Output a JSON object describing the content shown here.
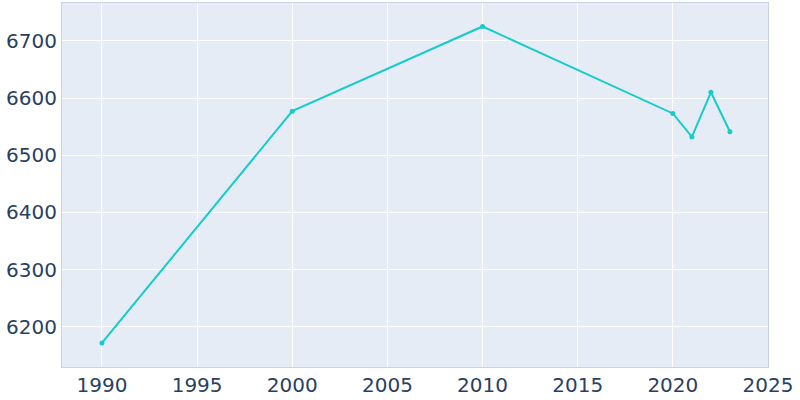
{
  "chart_data": {
    "type": "line",
    "x": [
      1990,
      2000,
      2010,
      2020,
      2021,
      2022,
      2023
    ],
    "values": [
      6172,
      6577,
      6725,
      6573,
      6532,
      6610,
      6541
    ],
    "color": "#17cbcb",
    "marker": "circle",
    "xlim": [
      1987.9,
      2025
    ],
    "xticks": [
      1990,
      1995,
      2000,
      2005,
      2010,
      2015,
      2020,
      2025
    ],
    "ylim": [
      6130,
      6766
    ],
    "yticks": [
      6200,
      6300,
      6400,
      6500,
      6600,
      6700
    ],
    "grid": true
  }
}
